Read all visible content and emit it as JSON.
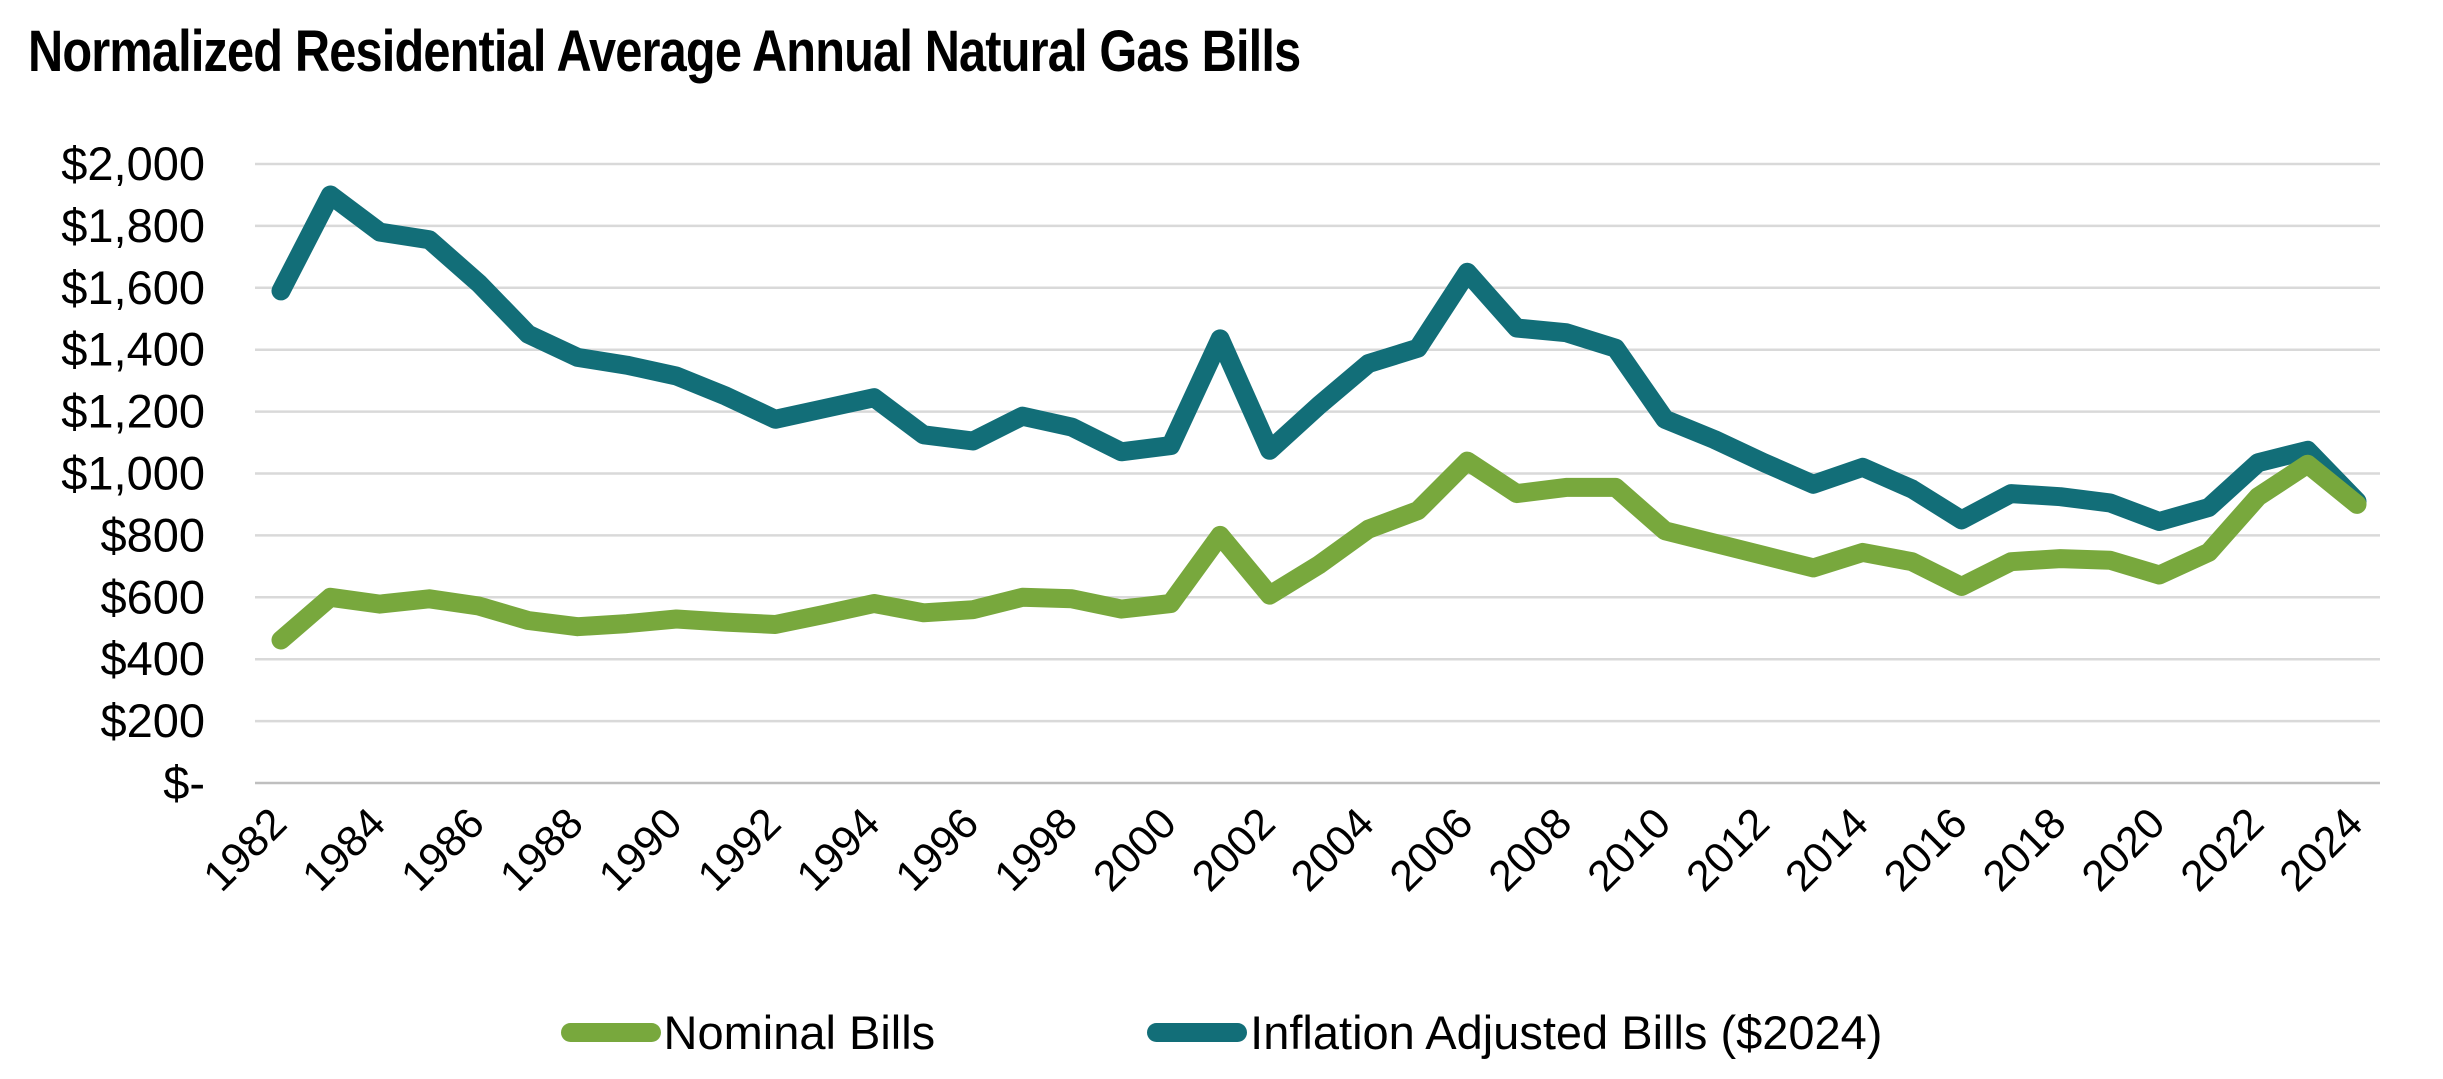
{
  "title": "Normalized Residential Average Annual Natural Gas Bills",
  "legend": [
    {
      "label": "Nominal Bills",
      "color": "#78A83D"
    },
    {
      "label": "Inflation Adjusted Bills ($2024)",
      "color": "#126E78"
    }
  ],
  "colors": {
    "nominal": "#78A83D",
    "inflation_adjusted": "#126E78",
    "gridline": "#D9D9D9",
    "axis_line": "#BFBFBF",
    "text": "#000000",
    "background": "#FFFFFF"
  },
  "chart_data": {
    "type": "line",
    "title": "Normalized Residential Average Annual Natural Gas Bills",
    "xlabel": "",
    "ylabel": "",
    "x": [
      1982,
      1983,
      1984,
      1985,
      1986,
      1987,
      1988,
      1989,
      1990,
      1991,
      1992,
      1993,
      1994,
      1995,
      1996,
      1997,
      1998,
      1999,
      2000,
      2001,
      2002,
      2003,
      2004,
      2005,
      2006,
      2007,
      2008,
      2009,
      2010,
      2011,
      2012,
      2013,
      2014,
      2015,
      2016,
      2017,
      2018,
      2019,
      2020,
      2021,
      2022,
      2023,
      2024
    ],
    "series": [
      {
        "name": "Nominal Bills",
        "color": "#78A83D",
        "values": [
          462,
          600,
          578,
          595,
          572,
          525,
          505,
          515,
          530,
          520,
          512,
          545,
          580,
          550,
          560,
          600,
          595,
          562,
          580,
          800,
          607,
          705,
          820,
          880,
          1040,
          935,
          955,
          955,
          815,
          775,
          735,
          695,
          745,
          715,
          635,
          715,
          725,
          720,
          672,
          745,
          925,
          1030,
          900
        ]
      },
      {
        "name": "Inflation Adjusted Bills ($2024)",
        "color": "#126E78",
        "values": [
          1590,
          1900,
          1780,
          1755,
          1615,
          1450,
          1375,
          1350,
          1315,
          1250,
          1175,
          1210,
          1245,
          1125,
          1105,
          1185,
          1150,
          1070,
          1090,
          1435,
          1075,
          1220,
          1355,
          1405,
          1650,
          1470,
          1455,
          1405,
          1175,
          1110,
          1035,
          965,
          1020,
          950,
          850,
          935,
          925,
          905,
          845,
          890,
          1035,
          1075,
          910
        ]
      }
    ],
    "ylim": [
      0,
      2000
    ],
    "ytick_step": 200,
    "ytick_labels": [
      "$-",
      "$200",
      "$400",
      "$600",
      "$800",
      "$1,000",
      "$1,200",
      "$1,400",
      "$1,600",
      "$1,800",
      "$2,000"
    ],
    "xtick_labels": [
      "1982",
      "1984",
      "1986",
      "1988",
      "1990",
      "1992",
      "1994",
      "1996",
      "1998",
      "2000",
      "2002",
      "2004",
      "2006",
      "2008",
      "2010",
      "2012",
      "2014",
      "2016",
      "2018",
      "2020",
      "2022",
      "2024"
    ],
    "grid": "horizontal-only",
    "legend_position": "bottom-center",
    "x_label_rotation_deg": 45
  }
}
